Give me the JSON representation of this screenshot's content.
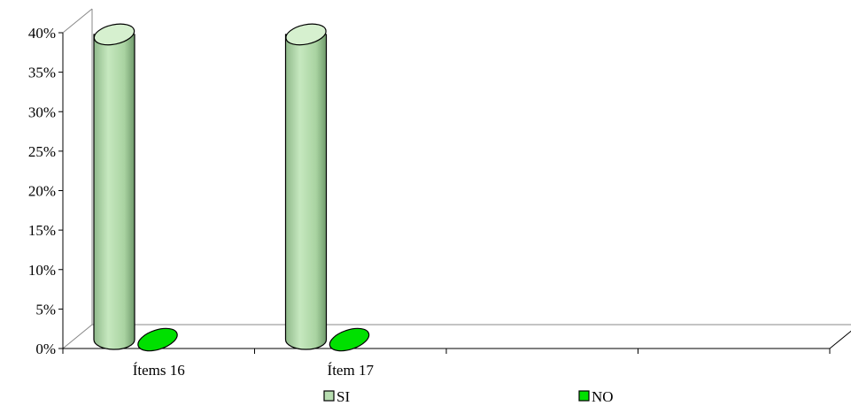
{
  "chart_data": {
    "type": "bar",
    "style": "3d-cylinder",
    "categories": [
      "Ítems 16",
      "Ítem 17",
      "",
      ""
    ],
    "series": [
      {
        "name": "SI",
        "values": [
          0.39,
          0.39,
          null,
          null
        ],
        "color": "#b7ddb0"
      },
      {
        "name": "NO",
        "values": [
          0.0,
          0.0,
          null,
          null
        ],
        "color": "#00e000"
      }
    ],
    "ylim": [
      0,
      0.4
    ],
    "yticks": [
      "0%",
      "5%",
      "10%",
      "15%",
      "20%",
      "25%",
      "30%",
      "35%",
      "40%"
    ],
    "title": "",
    "xlabel": "",
    "ylabel": "",
    "legend": "bottom",
    "grid": false
  }
}
